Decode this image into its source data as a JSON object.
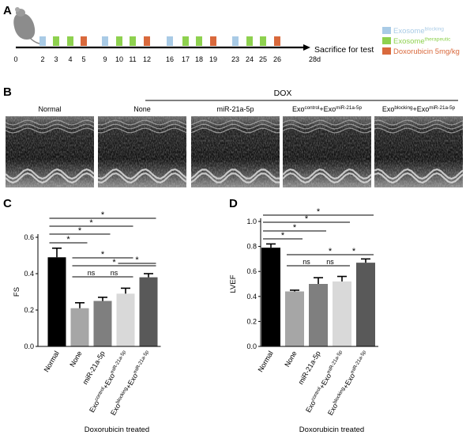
{
  "panel_a": {
    "letter": "A",
    "timeline_days": [
      "0",
      "2",
      "3",
      "4",
      "5",
      "9",
      "10",
      "11",
      "12",
      "16",
      "17",
      "18",
      "19",
      "23",
      "24",
      "25",
      "26"
    ],
    "end_day": "28d",
    "sacrifice_text": "Sacrifice for test",
    "markers": [
      {
        "day": "2",
        "kind": "blocking"
      },
      {
        "day": "3",
        "kind": "therapeutic"
      },
      {
        "day": "4",
        "kind": "therapeutic"
      },
      {
        "day": "5",
        "kind": "dox"
      },
      {
        "day": "9",
        "kind": "blocking"
      },
      {
        "day": "10",
        "kind": "therapeutic"
      },
      {
        "day": "11",
        "kind": "therapeutic"
      },
      {
        "day": "12",
        "kind": "dox"
      },
      {
        "day": "16",
        "kind": "blocking"
      },
      {
        "day": "17",
        "kind": "therapeutic"
      },
      {
        "day": "18",
        "kind": "therapeutic"
      },
      {
        "day": "19",
        "kind": "dox"
      },
      {
        "day": "23",
        "kind": "blocking"
      },
      {
        "day": "24",
        "kind": "therapeutic"
      },
      {
        "day": "25",
        "kind": "therapeutic"
      },
      {
        "day": "26",
        "kind": "dox"
      }
    ],
    "legend": [
      {
        "kind": "blocking",
        "label": "Exosome",
        "sup": "blocking",
        "color": "#a9cbe6"
      },
      {
        "kind": "therapeutic",
        "label": "Exosome",
        "sup": "therapeutic",
        "color": "#8ed14f"
      },
      {
        "kind": "dox",
        "label": "Doxorubicin 5mg/kg",
        "sup": "",
        "color": "#d9693c"
      }
    ]
  },
  "panel_b": {
    "letter": "B",
    "dox_label": "DOX",
    "images": [
      {
        "label": "Normal",
        "sup": "",
        "label2": "",
        "sup2": ""
      },
      {
        "label": "None",
        "sup": "",
        "label2": "",
        "sup2": ""
      },
      {
        "label": "miR-21a-5p",
        "sup": "",
        "label2": "",
        "sup2": ""
      },
      {
        "label": "Exo",
        "sup": "control",
        "label2": "+Exo",
        "sup2": "miR-21a-5p"
      },
      {
        "label": "Exo",
        "sup": "blocking",
        "label2": "+Exo",
        "sup2": "miR-21a-5p"
      }
    ]
  },
  "chart_data": [
    {
      "panel": "C",
      "type": "bar",
      "ylabel": "FS",
      "ylim": [
        0,
        0.6
      ],
      "yticks": [
        "0.0",
        "0.2",
        "0.4",
        "0.6"
      ],
      "xlabel": "Doxorubicin treated",
      "categories": [
        "Normal",
        "None",
        "miR-21a-5p",
        "Exo control +Exo miR-21a-5p",
        "Exo blocking +Exo miR-21a-5p"
      ],
      "tick_labels": [
        {
          "main": "Normal",
          "sup": "",
          "main2": "",
          "sup2": ""
        },
        {
          "main": "None",
          "sup": "",
          "main2": "",
          "sup2": ""
        },
        {
          "main": "miR-21a-5p",
          "sup": "",
          "main2": "",
          "sup2": ""
        },
        {
          "main": "Exo",
          "sup": "control",
          "main2": "+Exo",
          "sup2": "miR-21a-5p"
        },
        {
          "main": "Exo",
          "sup": "blocking",
          "main2": "+Exo",
          "sup2": "miR-21a-5p"
        }
      ],
      "values": [
        0.49,
        0.21,
        0.25,
        0.29,
        0.38
      ],
      "errors": [
        0.05,
        0.03,
        0.02,
        0.03,
        0.02
      ],
      "colors": [
        "#000000",
        "#a6a6a6",
        "#7f7f7f",
        "#d9d9d9",
        "#595959"
      ],
      "significance": [
        {
          "from": 0,
          "to": 4,
          "label": "*"
        },
        {
          "from": 0,
          "to": 3,
          "label": "*"
        },
        {
          "from": 0,
          "to": 2,
          "label": "*"
        },
        {
          "from": 0,
          "to": 1,
          "label": "*"
        },
        {
          "from": 1,
          "to": 3,
          "label": "*"
        },
        {
          "from": 1,
          "to": 4,
          "label": "*"
        },
        {
          "from": 1,
          "to": 2,
          "label": "ns"
        },
        {
          "from": 2,
          "to": 3,
          "label": "ns"
        },
        {
          "from": 3,
          "to": 4,
          "label": "*"
        }
      ]
    },
    {
      "panel": "D",
      "type": "bar",
      "ylabel": "LVEF",
      "ylim": [
        0,
        1.0
      ],
      "yticks": [
        "0.0",
        "0.2",
        "0.4",
        "0.6",
        "0.8",
        "1.0"
      ],
      "xlabel": "Doxorubicin treated",
      "categories": [
        "Normal",
        "None",
        "miR-21a-5p",
        "Exo control +Exo miR-21a-5p",
        "Exo blocking +Exo miR-21a-5p"
      ],
      "tick_labels": [
        {
          "main": "Normal",
          "sup": "",
          "main2": "",
          "sup2": ""
        },
        {
          "main": "None",
          "sup": "",
          "main2": "",
          "sup2": ""
        },
        {
          "main": "miR-21a-5p",
          "sup": "",
          "main2": "",
          "sup2": ""
        },
        {
          "main": "Exo",
          "sup": "control",
          "main2": "+Exo",
          "sup2": "miR-21a-5p"
        },
        {
          "main": "Exo",
          "sup": "blocking",
          "main2": "+Exo",
          "sup2": "miR-21a-5p"
        }
      ],
      "values": [
        0.79,
        0.44,
        0.5,
        0.52,
        0.67
      ],
      "errors": [
        0.03,
        0.01,
        0.05,
        0.04,
        0.03
      ],
      "colors": [
        "#000000",
        "#a6a6a6",
        "#7f7f7f",
        "#d9d9d9",
        "#595959"
      ],
      "significance": [
        {
          "from": 0,
          "to": 4,
          "label": "*"
        },
        {
          "from": 0,
          "to": 3,
          "label": "*"
        },
        {
          "from": 0,
          "to": 2,
          "label": "*"
        },
        {
          "from": 0,
          "to": 1,
          "label": "*"
        },
        {
          "from": 1,
          "to": 4,
          "label": "*"
        },
        {
          "from": 1,
          "to": 2,
          "label": "ns"
        },
        {
          "from": 2,
          "to": 3,
          "label": "ns"
        },
        {
          "from": 3,
          "to": 4,
          "label": "*"
        }
      ]
    }
  ]
}
